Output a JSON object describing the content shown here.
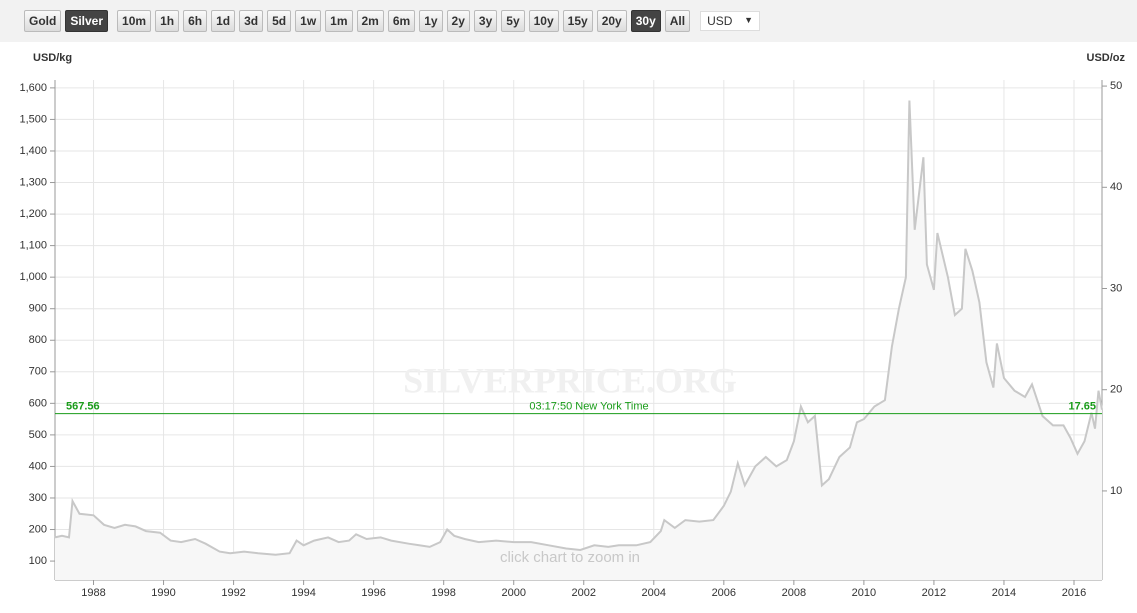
{
  "toolbar": {
    "buttons": [
      {
        "label": "Gold",
        "active": false
      },
      {
        "label": "Silver",
        "active": true
      },
      {
        "label": "10m",
        "active": false
      },
      {
        "label": "1h",
        "active": false
      },
      {
        "label": "6h",
        "active": false
      },
      {
        "label": "1d",
        "active": false
      },
      {
        "label": "3d",
        "active": false
      },
      {
        "label": "5d",
        "active": false
      },
      {
        "label": "1w",
        "active": false
      },
      {
        "label": "1m",
        "active": false
      },
      {
        "label": "2m",
        "active": false
      },
      {
        "label": "6m",
        "active": false
      },
      {
        "label": "1y",
        "active": false
      },
      {
        "label": "2y",
        "active": false
      },
      {
        "label": "3y",
        "active": false
      },
      {
        "label": "5y",
        "active": false
      },
      {
        "label": "10y",
        "active": false
      },
      {
        "label": "15y",
        "active": false
      },
      {
        "label": "20y",
        "active": false
      },
      {
        "label": "30y",
        "active": true
      },
      {
        "label": "All",
        "active": false
      }
    ],
    "currency": "USD"
  },
  "chart_data": {
    "type": "line",
    "fill": true,
    "color": "#c8c8c8",
    "area_color": "#f7f7f7",
    "watermark": "SILVERPRICE.ORG",
    "hint": "click chart to zoom in",
    "y_label": "USD/kg",
    "y2_label": "USD/oz",
    "grid": true,
    "x": [
      1986.9,
      1987.1,
      1987.3,
      1987.4,
      1987.6,
      1988.0,
      1988.3,
      1988.6,
      1988.9,
      1989.2,
      1989.5,
      1989.9,
      1990.2,
      1990.5,
      1990.9,
      1991.2,
      1991.6,
      1991.9,
      1992.3,
      1992.7,
      1993.2,
      1993.6,
      1993.8,
      1994.0,
      1994.3,
      1994.7,
      1995.0,
      1995.3,
      1995.5,
      1995.8,
      1996.2,
      1996.5,
      1997.0,
      1997.3,
      1997.6,
      1997.9,
      1998.1,
      1998.3,
      1998.6,
      1999.0,
      1999.5,
      2000.0,
      2000.5,
      2001.0,
      2001.5,
      2001.9,
      2002.3,
      2002.7,
      2003.0,
      2003.5,
      2003.9,
      2004.2,
      2004.3,
      2004.6,
      2004.9,
      2005.3,
      2005.7,
      2006.0,
      2006.2,
      2006.4,
      2006.6,
      2006.9,
      2007.2,
      2007.5,
      2007.8,
      2008.0,
      2008.2,
      2008.4,
      2008.6,
      2008.8,
      2009.0,
      2009.3,
      2009.6,
      2009.8,
      2010.0,
      2010.3,
      2010.6,
      2010.8,
      2011.0,
      2011.2,
      2011.3,
      2011.45,
      2011.7,
      2011.8,
      2012.0,
      2012.1,
      2012.4,
      2012.6,
      2012.8,
      2012.9,
      2013.1,
      2013.3,
      2013.5,
      2013.7,
      2013.8,
      2014.0,
      2014.3,
      2014.6,
      2014.8,
      2015.1,
      2015.4,
      2015.7,
      2015.9,
      2016.1,
      2016.3,
      2016.5,
      2016.6,
      2016.7,
      2016.8
    ],
    "values": [
      175,
      180,
      175,
      290,
      250,
      245,
      215,
      205,
      215,
      210,
      195,
      190,
      165,
      160,
      170,
      155,
      130,
      125,
      130,
      125,
      120,
      125,
      165,
      150,
      165,
      175,
      160,
      165,
      185,
      170,
      175,
      165,
      155,
      150,
      145,
      160,
      200,
      180,
      170,
      160,
      165,
      160,
      160,
      150,
      140,
      135,
      150,
      145,
      150,
      150,
      160,
      195,
      230,
      205,
      230,
      225,
      230,
      275,
      320,
      410,
      340,
      400,
      430,
      400,
      420,
      480,
      590,
      540,
      560,
      340,
      360,
      430,
      460,
      540,
      550,
      590,
      610,
      780,
      900,
      1000,
      1560,
      1150,
      1380,
      1040,
      960,
      1140,
      1000,
      880,
      900,
      1090,
      1020,
      920,
      730,
      650,
      790,
      680,
      640,
      620,
      660,
      560,
      530,
      530,
      490,
      440,
      480,
      570,
      520,
      640,
      580
    ],
    "xlim": [
      1986.9,
      2016.8
    ],
    "xticks": [
      1988,
      1990,
      1992,
      1994,
      1996,
      1998,
      2000,
      2002,
      2004,
      2006,
      2008,
      2010,
      2012,
      2014,
      2016
    ],
    "ylim": [
      40,
      1625
    ],
    "yticks": [
      100,
      200,
      300,
      400,
      500,
      600,
      700,
      800,
      900,
      {
        "value": 1000,
        "label": "1,000"
      },
      {
        "value": 1100,
        "label": "1,100"
      },
      {
        "value": 1200,
        "label": "1,200"
      },
      {
        "value": 1300,
        "label": "1,300"
      },
      {
        "value": 1400,
        "label": "1,400"
      },
      {
        "value": 1500,
        "label": "1,500"
      },
      {
        "value": 1600,
        "label": "1,600"
      }
    ],
    "y2lim": [
      1.2,
      50.6
    ],
    "y2ticks": [
      10,
      20,
      30,
      40,
      50
    ],
    "current_price": {
      "value": 567.56,
      "value_oz": 17.65,
      "time": "03:17:50 New York Time",
      "color": "#1a9c1a"
    }
  }
}
